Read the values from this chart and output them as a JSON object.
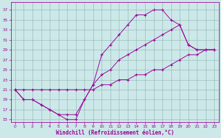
{
  "xlabel": "Windchill (Refroidissement éolien,°C)",
  "bg_color": "#cce8e8",
  "line_color": "#990099",
  "grid_color": "#99bbbb",
  "xlim": [
    -0.5,
    23.5
  ],
  "ylim": [
    14.5,
    38.5
  ],
  "xticks": [
    0,
    1,
    2,
    3,
    4,
    5,
    6,
    7,
    8,
    9,
    10,
    11,
    12,
    13,
    14,
    15,
    16,
    17,
    18,
    19,
    20,
    21,
    22,
    23
  ],
  "yticks": [
    15,
    17,
    19,
    21,
    23,
    25,
    27,
    29,
    31,
    33,
    35,
    37
  ],
  "c1x": [
    0,
    1,
    2,
    3,
    4,
    5,
    6,
    7,
    8,
    9,
    10,
    11,
    12,
    13,
    14,
    15,
    16,
    17,
    18,
    19,
    20,
    21,
    22,
    23
  ],
  "c1y": [
    21,
    19,
    19,
    18,
    17,
    16,
    15,
    15,
    19,
    22,
    28,
    30,
    32,
    34,
    36,
    36,
    37,
    37,
    35,
    34,
    30,
    29,
    29,
    29
  ],
  "c2x": [
    0,
    1,
    2,
    3,
    4,
    5,
    6,
    7,
    8,
    9,
    10,
    11,
    12,
    13,
    14,
    15,
    16,
    17,
    18,
    19,
    20,
    21,
    22,
    23
  ],
  "c2y": [
    21,
    19,
    19,
    18,
    17,
    16,
    16,
    16,
    19,
    22,
    24,
    25,
    27,
    28,
    29,
    30,
    31,
    32,
    33,
    34,
    30,
    29,
    29,
    29
  ],
  "c3x": [
    0,
    1,
    2,
    3,
    4,
    5,
    6,
    7,
    8,
    9,
    10,
    11,
    12,
    13,
    14,
    15,
    16,
    17,
    18,
    19,
    20,
    21,
    22,
    23
  ],
  "c3y": [
    21,
    21,
    21,
    21,
    21,
    21,
    21,
    21,
    21,
    21,
    22,
    22,
    23,
    23,
    24,
    24,
    25,
    25,
    26,
    27,
    28,
    28,
    29,
    29
  ]
}
